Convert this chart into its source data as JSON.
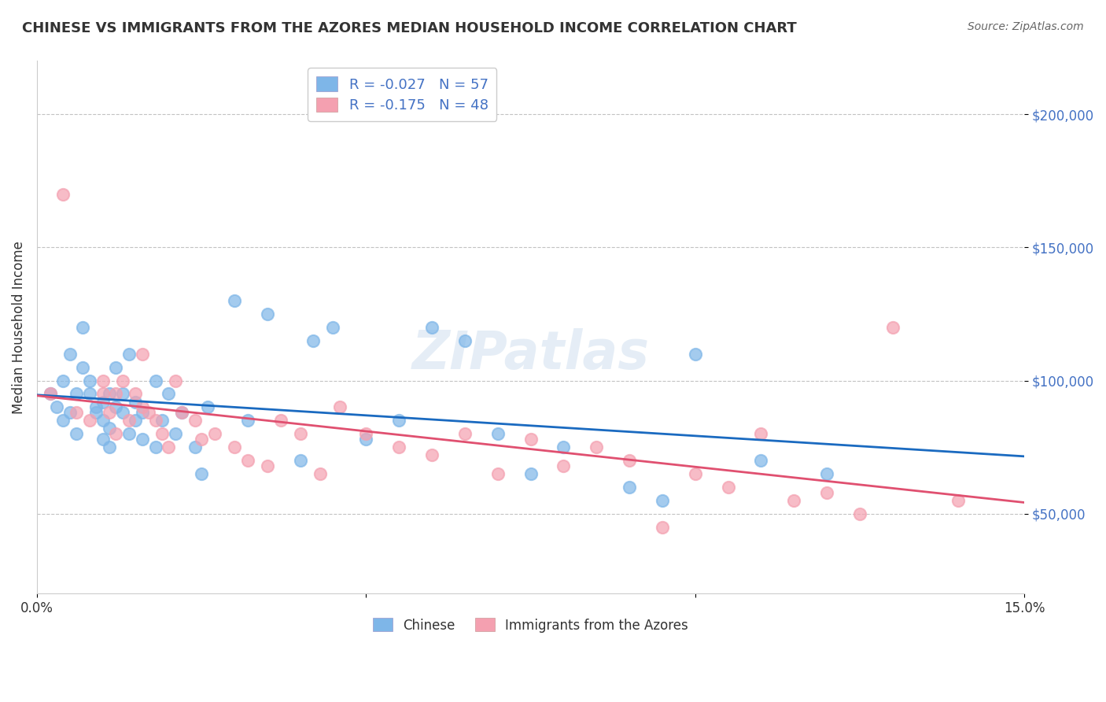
{
  "title": "CHINESE VS IMMIGRANTS FROM THE AZORES MEDIAN HOUSEHOLD INCOME CORRELATION CHART",
  "source": "Source: ZipAtlas.com",
  "xlabel": "",
  "ylabel": "Median Household Income",
  "xlim": [
    0.0,
    0.15
  ],
  "ylim": [
    20000,
    220000
  ],
  "yticks": [
    50000,
    100000,
    150000,
    200000
  ],
  "ytick_labels": [
    "$50,000",
    "$100,000",
    "$150,000",
    "$200,000"
  ],
  "xticks": [
    0.0,
    0.05,
    0.1,
    0.15
  ],
  "xtick_labels": [
    "0.0%",
    "",
    "",
    "15.0%"
  ],
  "legend_r1": "R = -0.027   N = 57",
  "legend_r2": "R = -0.175   N = 48",
  "legend_label1": "Chinese",
  "legend_label2": "Immigrants from the Azores",
  "color_chinese": "#7EB6E8",
  "color_azores": "#F4A0B0",
  "trendline_color_chinese": "#1A6AC0",
  "trendline_color_azores": "#E05070",
  "watermark": "ZIPatlas",
  "chinese_R": -0.027,
  "chinese_N": 57,
  "azores_R": -0.175,
  "azores_N": 48,
  "chinese_x": [
    0.002,
    0.003,
    0.004,
    0.004,
    0.005,
    0.005,
    0.006,
    0.006,
    0.007,
    0.007,
    0.008,
    0.008,
    0.009,
    0.009,
    0.01,
    0.01,
    0.01,
    0.011,
    0.011,
    0.011,
    0.012,
    0.012,
    0.013,
    0.013,
    0.014,
    0.014,
    0.015,
    0.015,
    0.016,
    0.016,
    0.018,
    0.018,
    0.019,
    0.02,
    0.021,
    0.022,
    0.024,
    0.025,
    0.026,
    0.03,
    0.032,
    0.035,
    0.04,
    0.042,
    0.045,
    0.05,
    0.055,
    0.06,
    0.065,
    0.07,
    0.075,
    0.08,
    0.09,
    0.095,
    0.1,
    0.11,
    0.12
  ],
  "chinese_y": [
    95000,
    90000,
    85000,
    100000,
    110000,
    88000,
    80000,
    95000,
    105000,
    120000,
    95000,
    100000,
    90000,
    88000,
    85000,
    92000,
    78000,
    95000,
    82000,
    75000,
    90000,
    105000,
    88000,
    95000,
    80000,
    110000,
    85000,
    92000,
    78000,
    88000,
    100000,
    75000,
    85000,
    95000,
    80000,
    88000,
    75000,
    65000,
    90000,
    130000,
    85000,
    125000,
    70000,
    115000,
    120000,
    78000,
    85000,
    120000,
    115000,
    80000,
    65000,
    75000,
    60000,
    55000,
    110000,
    70000,
    65000
  ],
  "azores_x": [
    0.002,
    0.004,
    0.006,
    0.008,
    0.01,
    0.01,
    0.011,
    0.012,
    0.012,
    0.013,
    0.014,
    0.015,
    0.016,
    0.016,
    0.017,
    0.018,
    0.019,
    0.02,
    0.021,
    0.022,
    0.024,
    0.025,
    0.027,
    0.03,
    0.032,
    0.035,
    0.037,
    0.04,
    0.043,
    0.046,
    0.05,
    0.055,
    0.06,
    0.065,
    0.07,
    0.075,
    0.08,
    0.085,
    0.09,
    0.095,
    0.1,
    0.105,
    0.11,
    0.115,
    0.12,
    0.125,
    0.13,
    0.14
  ],
  "azores_y": [
    95000,
    170000,
    88000,
    85000,
    100000,
    95000,
    88000,
    80000,
    95000,
    100000,
    85000,
    95000,
    110000,
    90000,
    88000,
    85000,
    80000,
    75000,
    100000,
    88000,
    85000,
    78000,
    80000,
    75000,
    70000,
    68000,
    85000,
    80000,
    65000,
    90000,
    80000,
    75000,
    72000,
    80000,
    65000,
    78000,
    68000,
    75000,
    70000,
    45000,
    65000,
    60000,
    80000,
    55000,
    58000,
    50000,
    120000,
    55000
  ]
}
